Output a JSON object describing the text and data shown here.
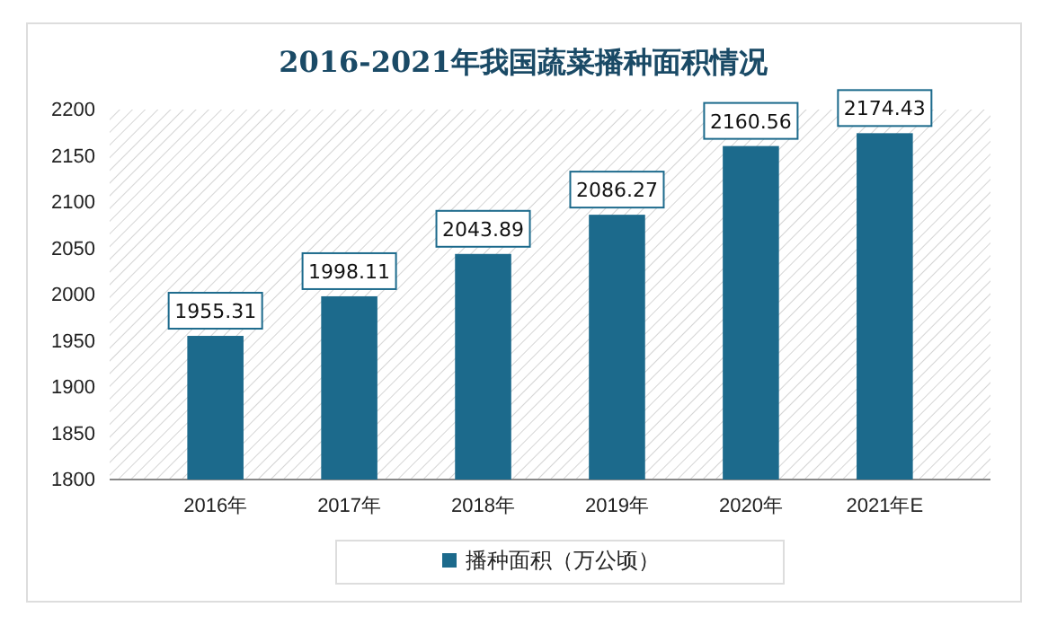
{
  "chart_data": {
    "type": "bar",
    "title": "2016-2021年我国蔬菜播种面积情况",
    "categories": [
      "2016年",
      "2017年",
      "2018年",
      "2019年",
      "2020年",
      "2021年E"
    ],
    "series": [
      {
        "name": "播种面积（万公顷）",
        "color": "#1c6a8c",
        "values": [
          1955.31,
          1998.11,
          2043.89,
          2086.27,
          2160.56,
          2174.43
        ]
      }
    ],
    "ylim": [
      1800,
      2200
    ],
    "yticks": [
      1800,
      1850,
      1900,
      1950,
      2000,
      2050,
      2100,
      2150,
      2200
    ],
    "data_labels": true,
    "legend": "bottom",
    "grid": false
  }
}
